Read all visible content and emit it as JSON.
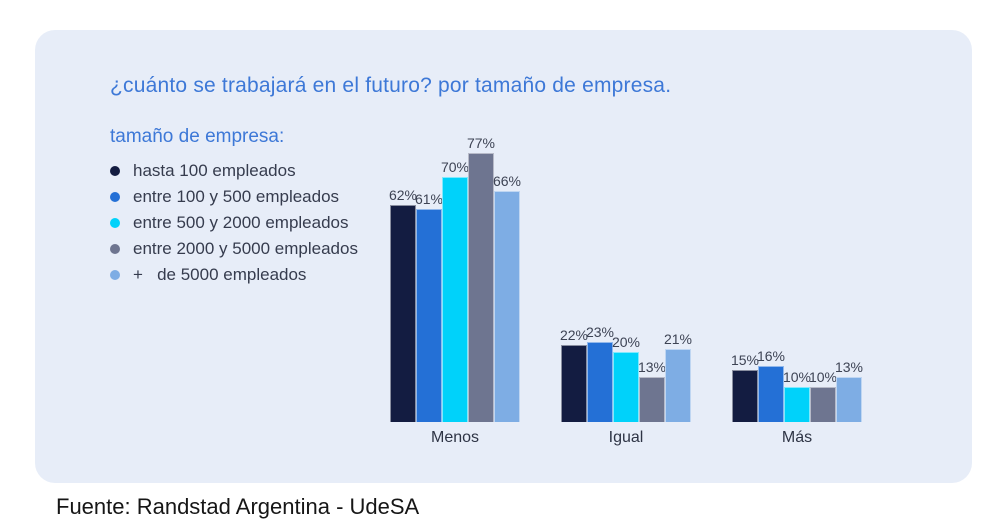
{
  "card": {
    "title": "¿cuánto se trabajará en el futuro? por tamaño de empresa.",
    "title_color": "#3d78d7",
    "background": "#e7edf8"
  },
  "legend": {
    "title": "tamaño de empresa:",
    "items": [
      {
        "label": "hasta 100 empleados",
        "color": "#131c41"
      },
      {
        "label": "entre 100 y 500 empleados",
        "color": "#2470d6"
      },
      {
        "label": "entre 500 y 2000 empleados",
        "color": "#00d2fa"
      },
      {
        "label": "entre 2000 y 5000 empleados",
        "color": "#6e7590"
      },
      {
        "label": "+   de 5000 empleados",
        "color": "#7eade4"
      }
    ]
  },
  "chart_data": {
    "type": "bar",
    "title": "¿cuánto se trabajará en el futuro? por tamaño de empresa.",
    "categories": [
      "Menos",
      "Igual",
      "Más"
    ],
    "series": [
      {
        "name": "hasta 100 empleados",
        "color": "#131c41",
        "values": [
          62,
          22,
          15
        ]
      },
      {
        "name": "entre 100 y 500 empleados",
        "color": "#2470d6",
        "values": [
          61,
          23,
          16
        ]
      },
      {
        "name": "entre 500 y 2000 empleados",
        "color": "#00d2fa",
        "values": [
          70,
          20,
          10
        ]
      },
      {
        "name": "entre 2000 y 5000 empleados",
        "color": "#6e7590",
        "values": [
          77,
          13,
          10
        ]
      },
      {
        "name": "+ de 5000 empleados",
        "color": "#7eade4",
        "values": [
          66,
          21,
          13
        ]
      }
    ],
    "value_suffix": "%",
    "xlabel": "",
    "ylabel": "",
    "ylim": [
      0,
      80
    ],
    "grid": false,
    "legend_position": "top-left"
  },
  "footer": {
    "source": "Fuente: Randstad Argentina - UdeSA"
  }
}
